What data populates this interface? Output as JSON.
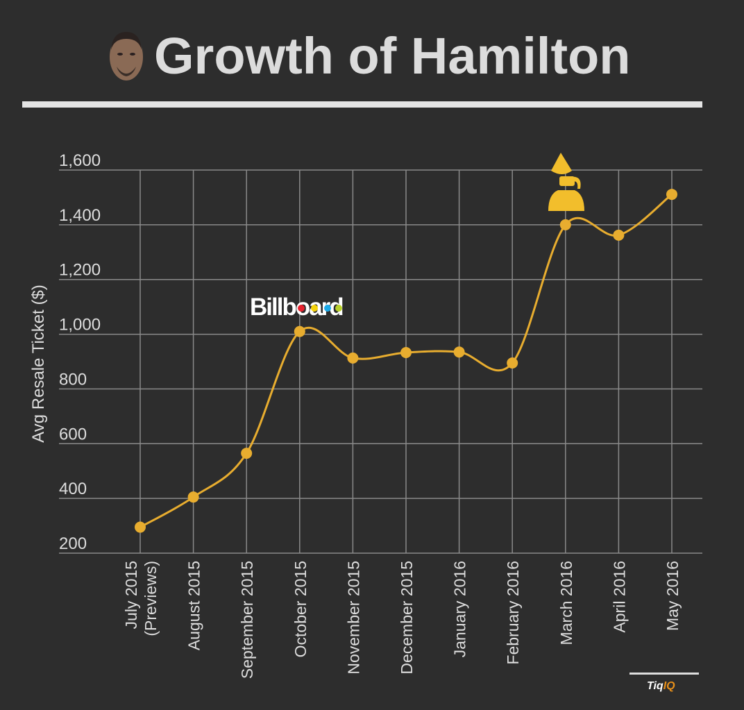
{
  "header": {
    "title": "Growth of Hamilton",
    "avatar": "lin-manuel-miranda-portrait"
  },
  "footer": {
    "brand_part1": "Tiq",
    "brand_part2": "IQ"
  },
  "colors": {
    "background": "#2d2d2d",
    "line": "#e8ad2f",
    "grid": "#8a8a8a",
    "text": "#dddddd"
  },
  "chart_data": {
    "type": "line",
    "title": "Growth of Hamilton",
    "xlabel": "",
    "ylabel": "Avg Resale Ticket ($)",
    "ylim": [
      200,
      1600
    ],
    "yticks": [
      200,
      400,
      600,
      800,
      1000,
      1200,
      1400,
      1600
    ],
    "ytick_labels": [
      "200",
      "400",
      "600",
      "800",
      "1,000",
      "1,200",
      "1,400",
      "1,600"
    ],
    "categories": [
      [
        "July 2015",
        "(Previews)"
      ],
      [
        "August 2015"
      ],
      [
        "September 2015"
      ],
      [
        "October 2015"
      ],
      [
        "November 2015"
      ],
      [
        "December 2015"
      ],
      [
        "January 2016"
      ],
      [
        "February 2016"
      ],
      [
        "March 2016"
      ],
      [
        "April 2016"
      ],
      [
        "May 2016"
      ]
    ],
    "series": [
      {
        "name": "Avg Resale Ticket",
        "values": [
          295,
          405,
          565,
          1010,
          913,
          933,
          935,
          895,
          1400,
          1362,
          1511
        ]
      }
    ],
    "grid": true,
    "annotations": [
      {
        "category_index": 3,
        "type": "logo",
        "text": "Billboard"
      },
      {
        "category_index": 8,
        "type": "icon",
        "text": "grammy-award-icon"
      }
    ]
  }
}
